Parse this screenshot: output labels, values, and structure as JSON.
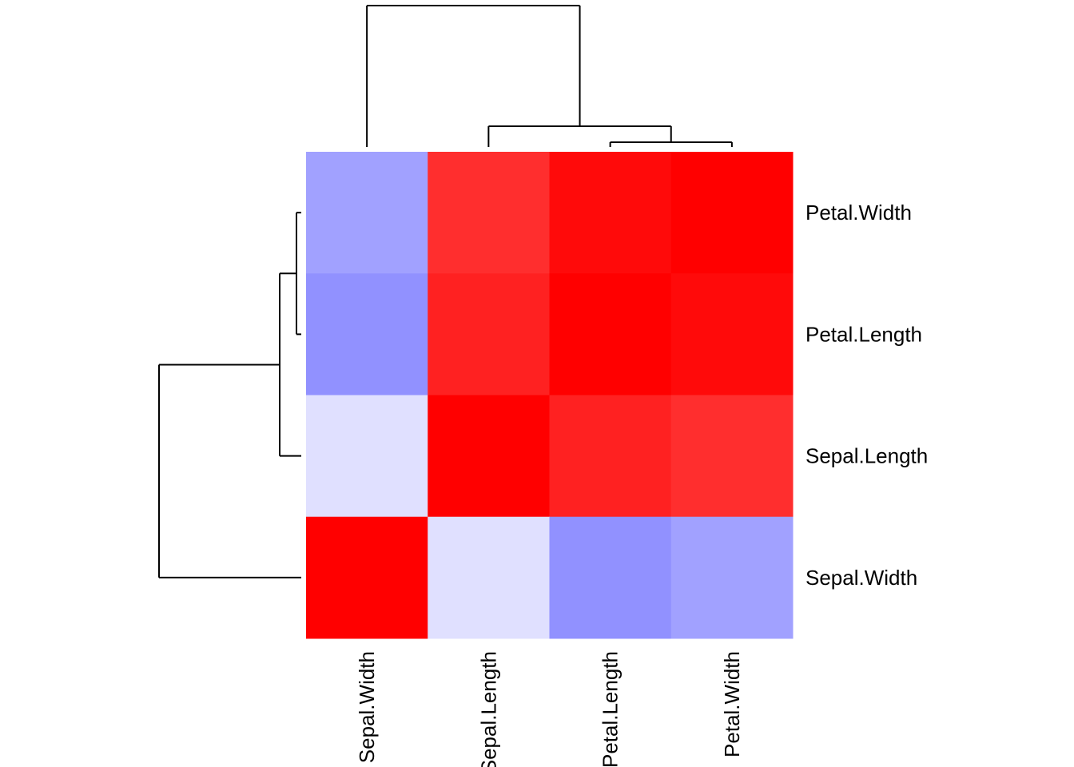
{
  "chart_data": {
    "type": "heatmap",
    "title": "",
    "xlabel": "",
    "ylabel": "",
    "columns": [
      "Sepal.Width",
      "Sepal.Length",
      "Petal.Length",
      "Petal.Width"
    ],
    "rows": [
      "Petal.Width",
      "Petal.Length",
      "Sepal.Length",
      "Sepal.Width"
    ],
    "values": [
      [
        -0.37,
        0.82,
        0.96,
        1.0
      ],
      [
        -0.43,
        0.87,
        1.0,
        0.96
      ],
      [
        -0.12,
        1.0,
        0.87,
        0.82
      ],
      [
        1.0,
        -0.12,
        -0.43,
        -0.37
      ]
    ],
    "color_scale": {
      "min": -1,
      "max": 1,
      "low_color": "#0000ff",
      "mid_color": "#ffffff",
      "high_color": "#ff0000"
    },
    "column_dendrogram": {
      "merge_order": [
        {
          "left": "Petal.Length",
          "right": "Petal.Width"
        },
        {
          "left": "Sepal.Length",
          "right": "Petal.Length+Petal.Width"
        },
        {
          "left": "Sepal.Width",
          "right": "Sepal.Length+Petal.Length+Petal.Width"
        }
      ]
    },
    "row_dendrogram": {
      "merge_order": [
        {
          "top": "Petal.Width",
          "bottom": "Petal.Length"
        },
        {
          "top": "Petal.Width+Petal.Length",
          "bottom": "Sepal.Length"
        },
        {
          "top": "Petal.Width+Petal.Length+Sepal.Length",
          "bottom": "Sepal.Width"
        }
      ]
    }
  }
}
